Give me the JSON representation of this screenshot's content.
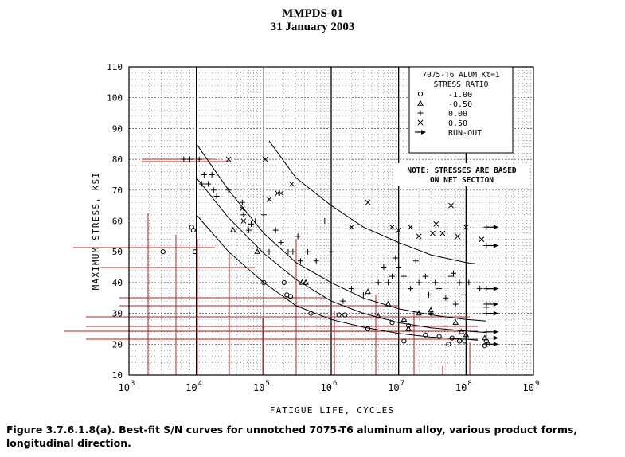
{
  "header": {
    "line1": "MMPDS-01",
    "line2": "31 January 2003"
  },
  "caption": "Figure 3.7.6.1.8(a).  Best-fit S/N curves for unnotched 7075-T6 aluminum alloy, various product forms, longitudinal direction.",
  "chart_data": {
    "type": "scatter",
    "title": "",
    "xlabel": "FATIGUE LIFE, CYCLES",
    "ylabel": "MAXIMUM STRESS, KSI",
    "x_scale": "log",
    "xlim": [
      1000,
      1000000000
    ],
    "ylim": [
      10,
      110
    ],
    "x_ticks": [
      {
        "base": "10",
        "exp": "3"
      },
      {
        "base": "10",
        "exp": "4"
      },
      {
        "base": "10",
        "exp": "5"
      },
      {
        "base": "10",
        "exp": "6"
      },
      {
        "base": "10",
        "exp": "7"
      },
      {
        "base": "10",
        "exp": "8"
      },
      {
        "base": "10",
        "exp": "9"
      }
    ],
    "y_ticks": [
      "10",
      "20",
      "30",
      "40",
      "50",
      "60",
      "70",
      "80",
      "90",
      "100",
      "110"
    ],
    "grid": true,
    "legend": {
      "title_lines": [
        "7075-T6 ALUM Kt=1",
        "STRESS RATIO"
      ],
      "placement": "top-right",
      "entries": [
        {
          "marker": "circle",
          "label": "-1.00"
        },
        {
          "marker": "triangle",
          "label": "-0.50"
        },
        {
          "marker": "plus",
          "label": "0.00"
        },
        {
          "marker": "cross",
          "label": "0.50"
        },
        {
          "marker": "arrow",
          "label": "RUN-OUT"
        }
      ]
    },
    "note_lines": [
      "NOTE: STRESSES ARE BASED",
      "ON NET SECTION"
    ],
    "series": [
      {
        "marker": "circle",
        "curve": [
          [
            10000,
            62
          ],
          [
            30000,
            50
          ],
          [
            100000,
            40
          ],
          [
            300000,
            32.5
          ],
          [
            1000000,
            28
          ],
          [
            3000000,
            25.5
          ],
          [
            10000000,
            23.5
          ],
          [
            30000000,
            22.3
          ],
          [
            100000000,
            21.6
          ],
          [
            150000000,
            21.3
          ]
        ],
        "points": [
          [
            3200,
            50
          ],
          [
            8500,
            58
          ],
          [
            9000,
            57
          ],
          [
            9500,
            50
          ],
          [
            100000,
            40
          ],
          [
            200000,
            40
          ],
          [
            220000,
            36
          ],
          [
            250000,
            35.5
          ],
          [
            500000,
            30
          ],
          [
            1300000,
            29.5
          ],
          [
            1600000,
            29.5
          ],
          [
            3500000,
            25
          ],
          [
            8000000,
            27
          ],
          [
            12000000,
            21
          ],
          [
            14000000,
            26
          ],
          [
            25000000,
            23
          ],
          [
            40000000,
            22.5
          ],
          [
            55000000,
            20
          ],
          [
            62000000,
            22
          ],
          [
            80000000,
            21
          ],
          [
            95000000,
            21
          ],
          [
            190000000,
            19.5
          ],
          [
            200000000,
            21
          ],
          [
            210000000,
            20
          ]
        ]
      },
      {
        "marker": "triangle",
        "curve": [
          [
            10000,
            74
          ],
          [
            30000,
            61
          ],
          [
            100000,
            49.5
          ],
          [
            300000,
            41
          ],
          [
            1000000,
            34
          ],
          [
            3000000,
            30
          ],
          [
            10000000,
            27
          ],
          [
            30000000,
            25.3
          ],
          [
            100000000,
            24.3
          ],
          [
            200000000,
            23.8
          ]
        ],
        "points": [
          [
            35000,
            57
          ],
          [
            80000,
            50
          ],
          [
            370000,
            40
          ],
          [
            420000,
            40
          ],
          [
            3500000,
            37
          ],
          [
            5000000,
            29
          ],
          [
            7000000,
            33
          ],
          [
            12000000,
            28
          ],
          [
            14000000,
            25
          ],
          [
            20000000,
            30
          ],
          [
            30000000,
            31
          ],
          [
            70000000,
            27
          ],
          [
            85000000,
            24
          ],
          [
            100000000,
            23
          ],
          [
            190000000,
            22
          ]
        ]
      },
      {
        "marker": "plus",
        "curve": [
          [
            10000,
            85
          ],
          [
            30000,
            70
          ],
          [
            100000,
            56
          ],
          [
            300000,
            46.5
          ],
          [
            1000000,
            40
          ],
          [
            3000000,
            35
          ],
          [
            10000000,
            31.5
          ],
          [
            30000000,
            29.5
          ],
          [
            100000000,
            28
          ],
          [
            200000000,
            27.5
          ]
        ],
        "points": [
          [
            6500,
            80
          ],
          [
            8000,
            80
          ],
          [
            11000,
            80
          ],
          [
            12000,
            72
          ],
          [
            13000,
            75
          ],
          [
            15000,
            72
          ],
          [
            17000,
            75
          ],
          [
            18000,
            70
          ],
          [
            20000,
            68
          ],
          [
            30000,
            70
          ],
          [
            48000,
            66
          ],
          [
            50000,
            62
          ],
          [
            60000,
            57
          ],
          [
            65000,
            59
          ],
          [
            75000,
            60
          ],
          [
            100000,
            62
          ],
          [
            120000,
            50
          ],
          [
            150000,
            57
          ],
          [
            180000,
            53
          ],
          [
            230000,
            50
          ],
          [
            270000,
            50
          ],
          [
            320000,
            55
          ],
          [
            350000,
            47
          ],
          [
            450000,
            50
          ],
          [
            600000,
            47
          ],
          [
            800000,
            60
          ],
          [
            1000000,
            50
          ],
          [
            1500000,
            34
          ],
          [
            2000000,
            38
          ],
          [
            3000000,
            36
          ],
          [
            5000000,
            40
          ],
          [
            6000000,
            45
          ],
          [
            7000000,
            40
          ],
          [
            8000000,
            42
          ],
          [
            9000000,
            48
          ],
          [
            10000000,
            45
          ],
          [
            12000000,
            42
          ],
          [
            15000000,
            38
          ],
          [
            18000000,
            47
          ],
          [
            20000000,
            40
          ],
          [
            25000000,
            42
          ],
          [
            28000000,
            36
          ],
          [
            30000000,
            30
          ],
          [
            35000000,
            40
          ],
          [
            40000000,
            38
          ],
          [
            50000000,
            35
          ],
          [
            60000000,
            42
          ],
          [
            65000000,
            43
          ],
          [
            70000000,
            33
          ],
          [
            80000000,
            40
          ],
          [
            90000000,
            36
          ],
          [
            110000000,
            40
          ],
          [
            160000000,
            38
          ],
          [
            200000000,
            32
          ]
        ]
      },
      {
        "marker": "cross",
        "curve": [
          [
            120000,
            86
          ],
          [
            300000,
            74
          ],
          [
            1000000,
            65
          ],
          [
            3000000,
            58
          ],
          [
            10000000,
            53
          ],
          [
            30000000,
            49
          ],
          [
            100000000,
            46.5
          ],
          [
            150000000,
            46
          ]
        ],
        "points": [
          [
            30000,
            80
          ],
          [
            48000,
            64
          ],
          [
            50000,
            60
          ],
          [
            105000,
            80
          ],
          [
            120000,
            67
          ],
          [
            160000,
            69
          ],
          [
            180000,
            69
          ],
          [
            260000,
            72
          ],
          [
            2000000,
            58
          ],
          [
            3500000,
            66
          ],
          [
            8000000,
            58
          ],
          [
            10000000,
            57
          ],
          [
            15000000,
            58
          ],
          [
            20000000,
            55
          ],
          [
            32000000,
            56
          ],
          [
            36000000,
            59
          ],
          [
            45000000,
            56
          ],
          [
            60000000,
            65
          ],
          [
            75000000,
            55
          ],
          [
            100000000,
            58
          ],
          [
            170000000,
            54
          ]
        ]
      }
    ],
    "runouts": [
      [
        200000000,
        58
      ],
      [
        200000000,
        52
      ],
      [
        200000000,
        38
      ],
      [
        200000000,
        33
      ],
      [
        200000000,
        30
      ],
      [
        200000000,
        24
      ],
      [
        200000000,
        22
      ],
      [
        200000000,
        20
      ]
    ]
  }
}
